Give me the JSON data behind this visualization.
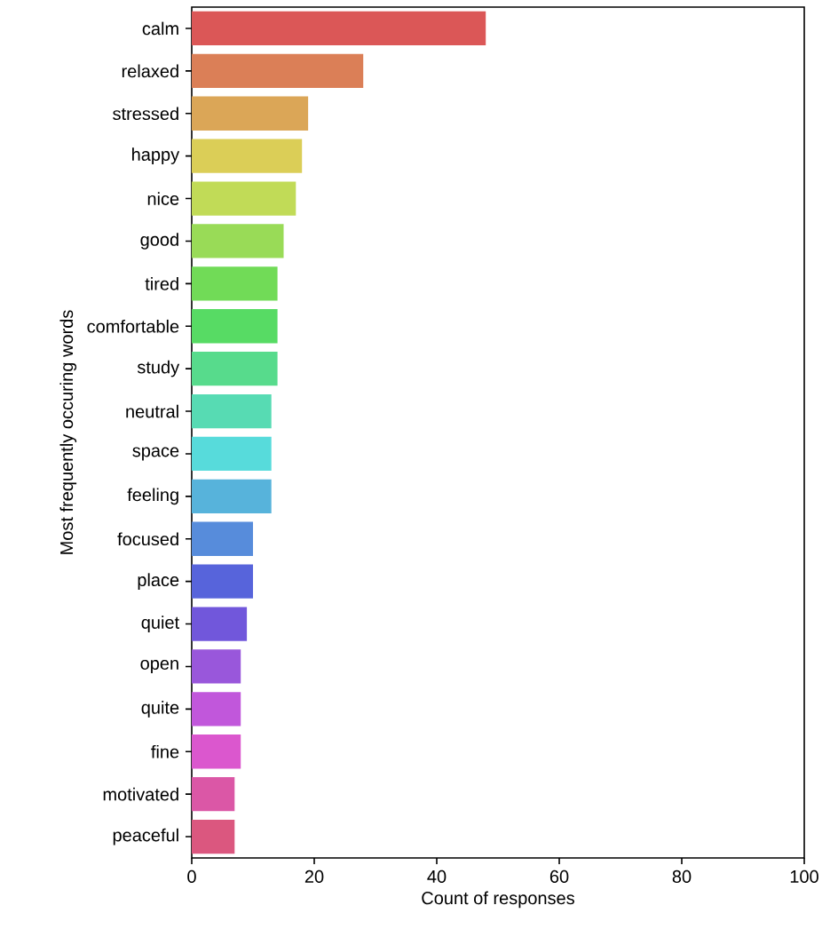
{
  "chart_data": {
    "type": "bar",
    "orientation": "horizontal",
    "xlabel": "Count of responses",
    "ylabel": "Most frequently occuring words",
    "categories": [
      "calm",
      "relaxed",
      "stressed",
      "happy",
      "nice",
      "good",
      "tired",
      "comfortable",
      "study",
      "neutral",
      "space",
      "feeling",
      "focused",
      "place",
      "quiet",
      "open",
      "quite",
      "fine",
      "motivated",
      "peaceful"
    ],
    "values": [
      48,
      28,
      19,
      18,
      17,
      15,
      14,
      14,
      14,
      13,
      13,
      13,
      10,
      10,
      9,
      8,
      8,
      8,
      7,
      7
    ],
    "colors": [
      "#db5757",
      "#db7f57",
      "#dba657",
      "#dbce57",
      "#c1db57",
      "#99db57",
      "#71db57",
      "#57db64",
      "#57db8c",
      "#57dbb3",
      "#57dbdb",
      "#57b3db",
      "#578cdb",
      "#5764db",
      "#7157db",
      "#9957db",
      "#c157db",
      "#db57ce",
      "#db57a6",
      "#db577f"
    ],
    "xlim": [
      0,
      100
    ],
    "xticks": [
      0,
      20,
      40,
      60,
      80,
      100
    ]
  }
}
